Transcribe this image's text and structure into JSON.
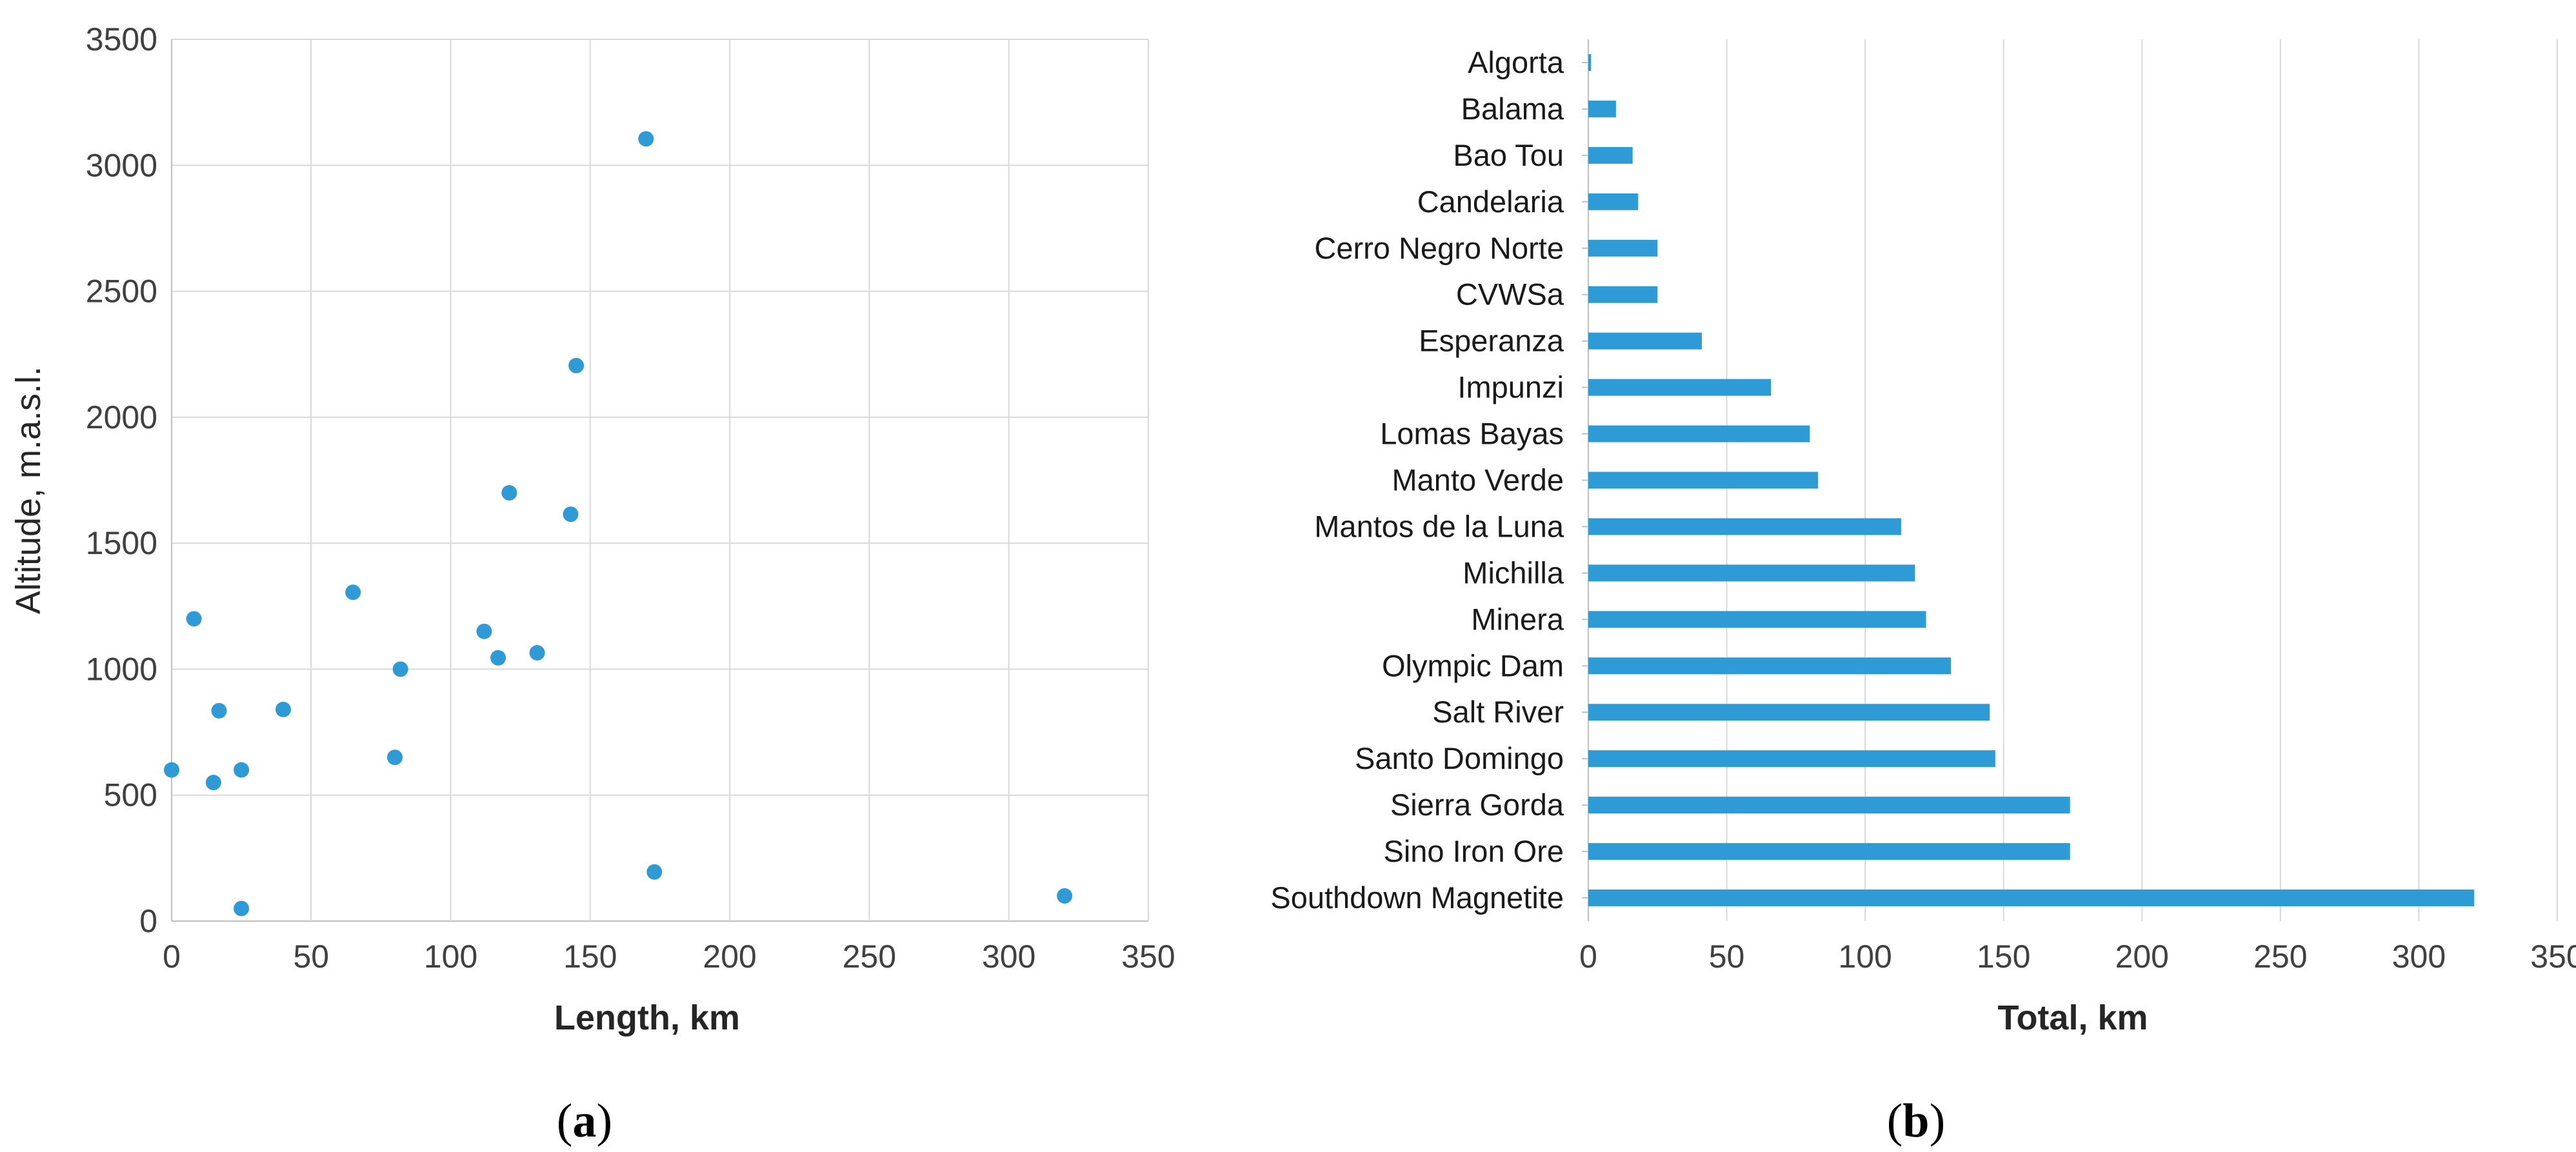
{
  "colors": {
    "series": "#2E9BD6",
    "grid": "#D9D9D9",
    "axis": "#BFBFBF"
  },
  "panels": [
    {
      "letter": "a"
    },
    {
      "letter": "b"
    }
  ],
  "chart_data": [
    {
      "type": "scatter",
      "title": "",
      "xlabel": "Length, km",
      "ylabel": "Altitude,  m.a.s.l.",
      "xlim": [
        0,
        350
      ],
      "ylim": [
        0,
        3500
      ],
      "xticks": [
        0,
        50,
        100,
        150,
        200,
        250,
        300,
        350
      ],
      "yticks": [
        0,
        500,
        1000,
        1500,
        2000,
        2500,
        3000,
        3500
      ],
      "grid": true,
      "legend": "none",
      "points": [
        {
          "x": 0,
          "y": 600
        },
        {
          "x": 8,
          "y": 1200
        },
        {
          "x": 15,
          "y": 550
        },
        {
          "x": 17,
          "y": 835
        },
        {
          "x": 25,
          "y": 600
        },
        {
          "x": 25,
          "y": 50
        },
        {
          "x": 40,
          "y": 840
        },
        {
          "x": 65,
          "y": 1305
        },
        {
          "x": 80,
          "y": 650
        },
        {
          "x": 82,
          "y": 1000
        },
        {
          "x": 112,
          "y": 1150
        },
        {
          "x": 117,
          "y": 1045
        },
        {
          "x": 121,
          "y": 1700
        },
        {
          "x": 131,
          "y": 1065
        },
        {
          "x": 143,
          "y": 1615
        },
        {
          "x": 145,
          "y": 2205
        },
        {
          "x": 170,
          "y": 3105
        },
        {
          "x": 173,
          "y": 195
        },
        {
          "x": 320,
          "y": 100
        }
      ]
    },
    {
      "type": "bar",
      "orientation": "horizontal",
      "title": "",
      "xlabel": "Total, km",
      "ylabel": "",
      "xlim": [
        0,
        350
      ],
      "xticks": [
        0,
        50,
        100,
        150,
        200,
        250,
        300,
        350
      ],
      "grid": true,
      "legend": "none",
      "categories": [
        "Algorta",
        "Balama",
        "Bao Tou",
        "Candelaria",
        "Cerro Negro Norte",
        "CVWSa",
        "Esperanza",
        "Impunzi",
        "Lomas Bayas",
        "Manto Verde",
        "Mantos de la Luna",
        "Michilla",
        "Minera",
        "Olympic Dam",
        "Salt River",
        "Santo Domingo",
        "Sierra Gorda",
        "Sino Iron Ore",
        "Southdown Magnetite"
      ],
      "values": [
        1,
        10,
        16,
        18,
        25,
        25,
        41,
        66,
        80,
        83,
        113,
        118,
        122,
        131,
        145,
        147,
        174,
        174,
        320
      ]
    }
  ]
}
